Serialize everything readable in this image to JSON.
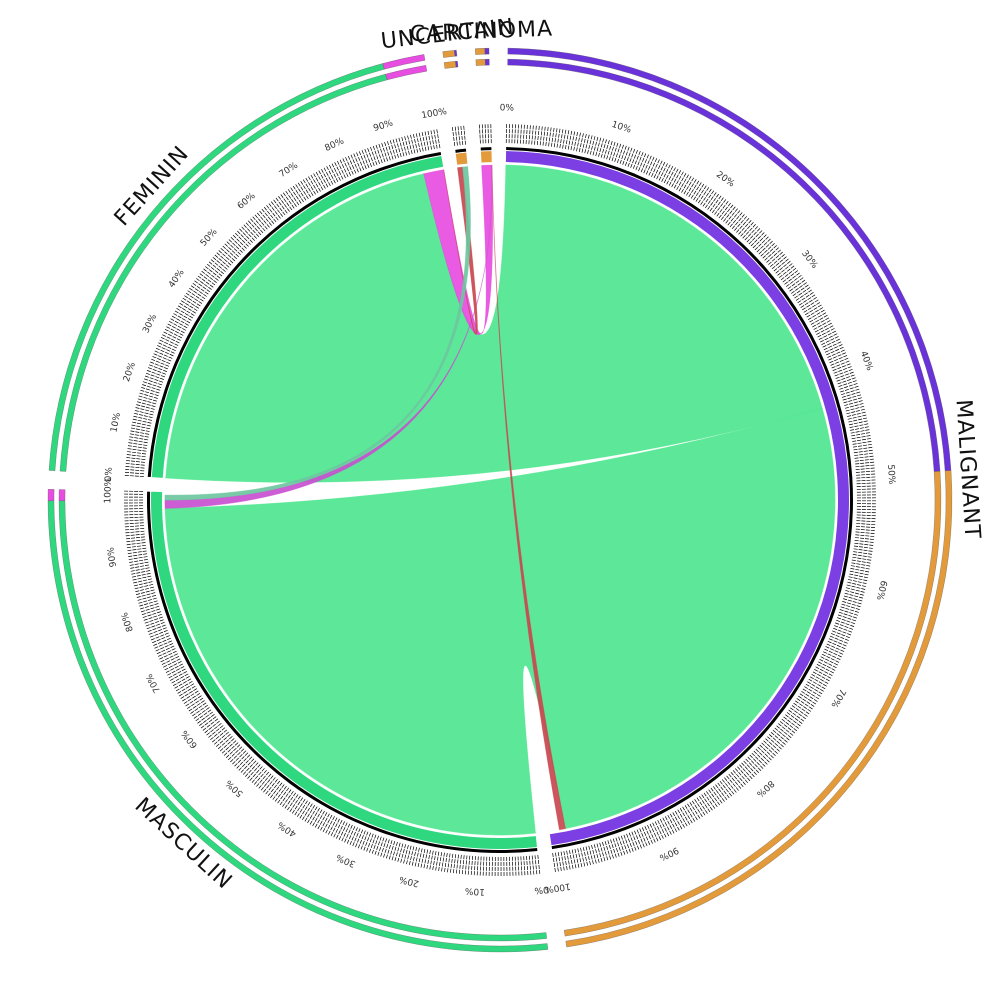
{
  "chart_data": {
    "type": "chord",
    "title": "",
    "segments": [
      {
        "name": "MALIGNANT",
        "value": 49.0,
        "color": "#7b3fe4",
        "outer": [
          {
            "color": "#6a33d9",
            "share": 0.5
          },
          {
            "color": "#e39a3b",
            "share": 0.5
          }
        ]
      },
      {
        "name": "MASCULIN",
        "value": 28.0,
        "color": "#2fd87f",
        "outer": [
          {
            "color": "#2fd87f",
            "share": 0.985
          },
          {
            "color": "#e64de0",
            "share": 0.015
          }
        ]
      },
      {
        "name": "FEMININ",
        "value": 22.0,
        "color": "#2fd87f",
        "outer": [
          {
            "color": "#2fd87f",
            "share": 0.93
          },
          {
            "color": "#e64de0",
            "share": 0.07
          }
        ]
      },
      {
        "name": "UNCERTAIN",
        "value": 0.5,
        "color": "#e39a3b",
        "outer": [
          {
            "color": "#e39a3b",
            "share": 0.85
          },
          {
            "color": "#6a33d9",
            "share": 0.15
          }
        ]
      },
      {
        "name": "CARCINOMA",
        "value": 0.5,
        "color": "#e39a3b",
        "outer": [
          {
            "color": "#e39a3b",
            "share": 0.7
          },
          {
            "color": "#6a33d9",
            "share": 0.3
          }
        ]
      }
    ],
    "chords": [
      {
        "from": "MALIGNANT",
        "to": "FEMININ",
        "value": 21.0,
        "color": "#4ee68f"
      },
      {
        "from": "MALIGNANT",
        "to": "MASCULIN",
        "value": 27.2,
        "color": "#4ee68f"
      },
      {
        "from": "FEMININ",
        "to": "CARCINOMA",
        "value": 1.7,
        "color": "#e64de0"
      },
      {
        "from": "MASCULIN",
        "to": "CARCINOMA",
        "value": 0.4,
        "color": "#c94fd0"
      },
      {
        "from": "MALIGNANT",
        "to": "CARCINOMA",
        "value": 0.3,
        "color": "#c9474f"
      },
      {
        "from": "FEMININ",
        "to": "UNCERTAIN",
        "value": 0.25,
        "color": "#c9474f"
      },
      {
        "from": "MASCULIN",
        "to": "UNCERTAIN",
        "value": 0.25,
        "color": "#6ec7a0"
      }
    ],
    "tick_labels": [
      "0%",
      "10%",
      "20%",
      "30%",
      "40%",
      "50%",
      "60%",
      "70%",
      "80%",
      "90%",
      "100%"
    ],
    "colors": {
      "purple": "#6a33d9",
      "orange": "#e39a3b",
      "green": "#2fd87f",
      "magenta": "#e64de0"
    }
  }
}
